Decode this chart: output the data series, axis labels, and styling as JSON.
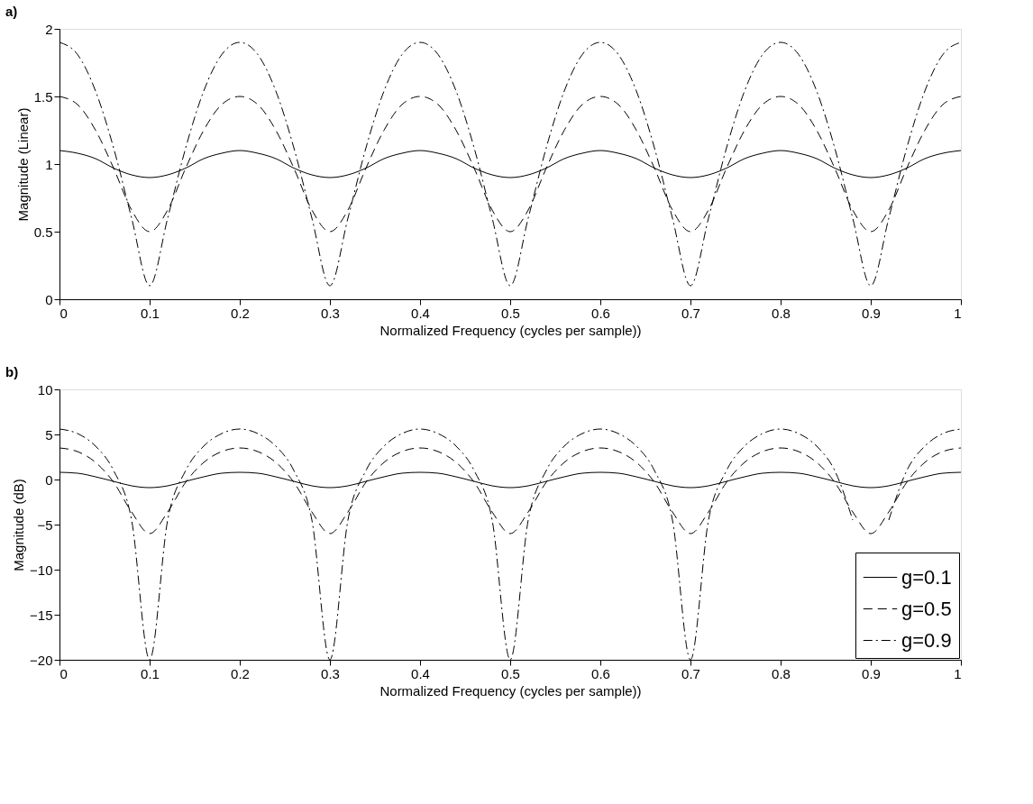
{
  "chart_data": [
    {
      "type": "line",
      "title": "a)",
      "xlabel": "Normalized Frequency (cycles per sample))",
      "ylabel": "Magnitude (Linear)",
      "x": [
        0,
        0.02,
        0.04,
        0.06,
        0.08,
        0.1,
        0.12,
        0.14,
        0.16,
        0.18,
        0.2,
        0.22,
        0.24,
        0.26,
        0.28,
        0.3,
        0.32,
        0.34,
        0.36,
        0.38,
        0.4,
        0.42,
        0.44,
        0.46,
        0.48,
        0.5,
        0.52,
        0.54,
        0.56,
        0.58,
        0.6,
        0.62,
        0.64,
        0.66,
        0.68,
        0.7,
        0.72,
        0.74,
        0.76,
        0.78,
        0.8,
        0.82,
        0.84,
        0.86,
        0.88,
        0.9,
        0.92,
        0.94,
        0.96,
        0.98,
        1.0
      ],
      "series": [
        {
          "color": "#000000",
          "line_style": "solid",
          "values": [
            1.1,
            1.08,
            1.04,
            0.97,
            0.92,
            0.9,
            0.92,
            0.97,
            1.04,
            1.08,
            1.1,
            1.08,
            1.04,
            0.97,
            0.92,
            0.9,
            0.92,
            0.97,
            1.04,
            1.08,
            1.1,
            1.08,
            1.04,
            0.97,
            0.92,
            0.9,
            0.92,
            0.97,
            1.04,
            1.08,
            1.1,
            1.08,
            1.04,
            0.97,
            0.92,
            0.9,
            0.92,
            0.97,
            1.04,
            1.08,
            1.1,
            1.08,
            1.04,
            0.97,
            0.92,
            0.9,
            0.92,
            0.97,
            1.04,
            1.08,
            1.1
          ]
        },
        {
          "color": "#000000",
          "line_style": "dashed",
          "values": [
            1.5,
            1.44,
            1.25,
            0.97,
            0.66,
            0.5,
            0.66,
            0.97,
            1.25,
            1.44,
            1.5,
            1.44,
            1.25,
            0.97,
            0.66,
            0.5,
            0.66,
            0.97,
            1.25,
            1.44,
            1.5,
            1.44,
            1.25,
            0.97,
            0.66,
            0.5,
            0.66,
            0.97,
            1.25,
            1.44,
            1.5,
            1.44,
            1.25,
            0.97,
            0.66,
            0.5,
            0.66,
            0.97,
            1.25,
            1.44,
            1.5,
            1.44,
            1.25,
            0.97,
            0.66,
            0.5,
            0.66,
            0.97,
            1.25,
            1.44,
            1.5
          ]
        },
        {
          "color": "#000000",
          "line_style": "dashdot",
          "values": [
            1.9,
            1.81,
            1.54,
            1.12,
            0.6,
            0.1,
            0.6,
            1.12,
            1.54,
            1.81,
            1.9,
            1.81,
            1.54,
            1.12,
            0.6,
            0.1,
            0.6,
            1.12,
            1.54,
            1.81,
            1.9,
            1.81,
            1.54,
            1.12,
            0.6,
            0.1,
            0.6,
            1.12,
            1.54,
            1.81,
            1.9,
            1.81,
            1.54,
            1.12,
            0.6,
            0.1,
            0.6,
            1.12,
            1.54,
            1.81,
            1.9,
            1.81,
            1.54,
            1.12,
            0.6,
            0.1,
            0.6,
            1.12,
            1.54,
            1.81,
            1.9
          ]
        }
      ],
      "xlim": [
        0,
        1
      ],
      "xticks": [
        0,
        0.1,
        0.2,
        0.3,
        0.4,
        0.5,
        0.6,
        0.7,
        0.8,
        0.9,
        1
      ],
      "ylim": [
        0,
        2
      ],
      "yticks": [
        0,
        0.5,
        1,
        1.5,
        2
      ],
      "grid": false
    },
    {
      "type": "line",
      "title": "b)",
      "xlabel": "Normalized Frequency (cycles per sample))",
      "ylabel": "Magnitude (dB)",
      "x": [
        0,
        0.02,
        0.04,
        0.06,
        0.08,
        0.1,
        0.12,
        0.14,
        0.16,
        0.18,
        0.2,
        0.22,
        0.24,
        0.26,
        0.28,
        0.3,
        0.32,
        0.34,
        0.36,
        0.38,
        0.4,
        0.42,
        0.44,
        0.46,
        0.48,
        0.5,
        0.52,
        0.54,
        0.56,
        0.58,
        0.6,
        0.62,
        0.64,
        0.66,
        0.68,
        0.7,
        0.72,
        0.74,
        0.76,
        0.78,
        0.8,
        0.82,
        0.84,
        0.86,
        0.88,
        0.9,
        0.92,
        0.94,
        0.96,
        0.98,
        1.0
      ],
      "series": [
        {
          "name": "g=0.1",
          "color": "#000000",
          "line_style": "solid",
          "values": [
            0.8,
            0.7,
            0.3,
            -0.2,
            -0.7,
            -0.9,
            -0.7,
            -0.2,
            0.3,
            0.7,
            0.8,
            0.7,
            0.3,
            -0.2,
            -0.7,
            -0.9,
            -0.7,
            -0.2,
            0.3,
            0.7,
            0.8,
            0.7,
            0.3,
            -0.2,
            -0.7,
            -0.9,
            -0.7,
            -0.2,
            0.3,
            0.7,
            0.8,
            0.7,
            0.3,
            -0.2,
            -0.7,
            -0.9,
            -0.7,
            -0.2,
            0.3,
            0.7,
            0.8,
            0.7,
            0.3,
            -0.2,
            -0.7,
            -0.9,
            -0.7,
            -0.2,
            0.3,
            0.7,
            0.8
          ]
        },
        {
          "name": "g=0.5",
          "color": "#000000",
          "line_style": "dashed",
          "values": [
            3.5,
            3.1,
            1.9,
            -0.3,
            -3.6,
            -6,
            -3.6,
            -0.3,
            1.9,
            3.1,
            3.5,
            3.1,
            1.9,
            -0.3,
            -3.6,
            -6,
            -3.6,
            -0.3,
            1.9,
            3.1,
            3.5,
            3.1,
            1.9,
            -0.3,
            -3.6,
            -6,
            -3.6,
            -0.3,
            1.9,
            3.1,
            3.5,
            3.1,
            1.9,
            -0.3,
            -3.6,
            -6,
            -3.6,
            -0.3,
            1.9,
            3.1,
            3.5,
            3.1,
            1.9,
            -0.3,
            -3.6,
            -6,
            -3.6,
            -0.3,
            1.9,
            3.1,
            3.5
          ]
        },
        {
          "name": "g=0.9",
          "color": "#000000",
          "line_style": "dashdot",
          "values": [
            5.6,
            5.1,
            3.7,
            1,
            -4.5,
            -20,
            -4.5,
            1,
            3.7,
            5.1,
            5.6,
            5.1,
            3.7,
            1,
            -4.5,
            -20,
            -4.5,
            1,
            3.7,
            5.1,
            5.6,
            5.1,
            3.7,
            1,
            -4.5,
            -20,
            -4.5,
            1,
            3.7,
            5.1,
            5.6,
            5.1,
            3.7,
            1,
            -4.5,
            -20,
            -4.5,
            1,
            3.7,
            5.1,
            5.6,
            5.1,
            3.7,
            1,
            -4.5,
            null,
            -4.5,
            1,
            3.7,
            5.1,
            5.6
          ]
        }
      ],
      "xlim": [
        0,
        1
      ],
      "xticks": [
        0,
        0.1,
        0.2,
        0.3,
        0.4,
        0.5,
        0.6,
        0.7,
        0.8,
        0.9,
        1
      ],
      "ylim": [
        -20,
        10
      ],
      "yticks": [
        -20,
        -15,
        -10,
        -5,
        0,
        5,
        10
      ],
      "grid": false,
      "legend": "bottom right"
    }
  ]
}
